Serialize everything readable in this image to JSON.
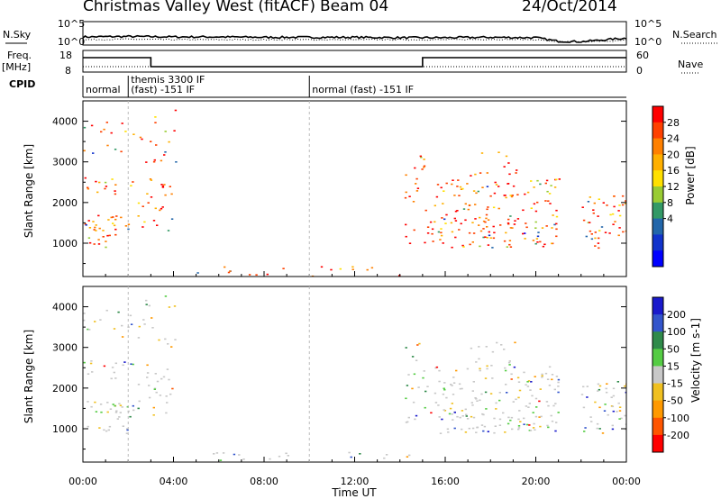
{
  "header": {
    "title": "Christmas Valley West (fitACF)",
    "beam": "Beam 04",
    "date": "24/Oct/2014"
  },
  "chart_data": [
    {
      "type": "line",
      "panel": "noise",
      "left_label": "N.Sky",
      "right_label": "N.Search",
      "left_ticks": [
        "10^5",
        "10^0"
      ],
      "right_ticks": [
        "10^5",
        "10^0"
      ],
      "x": [
        0,
        2,
        4,
        6,
        8,
        10,
        12,
        14,
        16,
        18,
        20,
        21,
        22,
        24
      ],
      "series": [
        {
          "name": "N.Sky",
          "values": [
            1.6,
            1.7,
            1.6,
            1.6,
            1.5,
            1.5,
            1.5,
            1.4,
            1.4,
            1.5,
            1.4,
            0.5,
            0.4,
            1.3
          ]
        },
        {
          "name": "N.Search",
          "values": [
            0.9,
            1.0,
            0.9,
            0.9,
            0.9,
            0.9,
            0.9,
            0.9,
            0.9,
            1.0,
            0.9,
            0.4,
            0.3,
            0.7
          ]
        }
      ]
    },
    {
      "type": "line",
      "panel": "frequency",
      "left_label": "Freq.",
      "left_units": "[MHz]",
      "right_label": "Nave",
      "left_ticks": [
        "18",
        "8"
      ],
      "right_ticks": [
        "60",
        "0"
      ],
      "segments": [
        {
          "x0": 0,
          "x1": 3,
          "value": 15
        },
        {
          "x0": 3,
          "x1": 15,
          "value": 10
        },
        {
          "x0": 15,
          "x1": 24,
          "value": 15
        }
      ],
      "nave_level": 12
    },
    {
      "type": "table",
      "panel": "cpid",
      "label": "CPID",
      "dividers": [
        0,
        2,
        10
      ],
      "entries": [
        {
          "x": 0,
          "text": "normal"
        },
        {
          "x": 2,
          "text": "themis 3300 IF",
          "text2": "(fast) -151 IF"
        },
        {
          "x": 10,
          "text": "normal (fast) -151 IF"
        }
      ]
    },
    {
      "type": "heatmap",
      "panel": "power",
      "ylabel": "Slant Range [km]",
      "ylim": [
        180,
        4500
      ],
      "yticks": [
        1000,
        2000,
        3000,
        4000
      ],
      "colorbar": {
        "label": "Power [dB]",
        "ticks": [
          "28",
          "24",
          "20",
          "16",
          "12",
          "8",
          "4"
        ],
        "colors": [
          "#ff0000",
          "#ff4000",
          "#ff8000",
          "#ffb000",
          "#ffe000",
          "#99cc33",
          "#339966",
          "#2266aa",
          "#1133cc",
          "#0000ff"
        ]
      }
    },
    {
      "type": "heatmap",
      "panel": "velocity",
      "ylabel": "Slant Range [km]",
      "ylim": [
        180,
        4500
      ],
      "yticks": [
        1000,
        2000,
        3000,
        4000
      ],
      "xlabel": "Time UT",
      "xticks": [
        "00:00",
        "04:00",
        "08:00",
        "12:00",
        "16:00",
        "20:00",
        "00:00"
      ],
      "colorbar": {
        "label": "Velocity [m s-1]",
        "ticks": [
          "200",
          "100",
          "50",
          "15",
          "-15",
          "-50",
          "-100",
          "-200"
        ],
        "colors": [
          "#1a1acc",
          "#3355cc",
          "#2f8a4a",
          "#55cc44",
          "#c8c8c8",
          "#f0c020",
          "#ff9900",
          "#ff5500",
          "#ff0000"
        ]
      }
    }
  ]
}
